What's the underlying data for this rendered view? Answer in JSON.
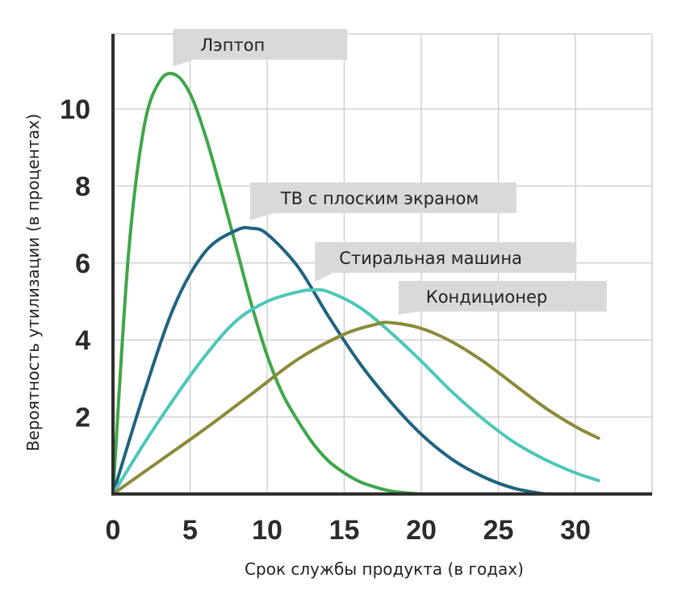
{
  "chart_data": {
    "type": "line",
    "xlabel": "Срок службы продукта (в годах)",
    "ylabel": "Вероятность утилизации (в процентах)",
    "xlim": [
      0,
      35
    ],
    "ylim": [
      0,
      12
    ],
    "x_ticks": [
      0,
      5,
      10,
      15,
      20,
      25,
      30
    ],
    "y_ticks": [
      2,
      4,
      6,
      8,
      10
    ],
    "grid": true,
    "series": [
      {
        "name": "Лэптоп",
        "color": "#3ea64a",
        "x": [
          0,
          1,
          2,
          3,
          4,
          5,
          6,
          7,
          8,
          9,
          10,
          11,
          12,
          13,
          14,
          15,
          16,
          17,
          18,
          19,
          20
        ],
        "y": [
          0,
          6.2,
          9.5,
          10.7,
          10.9,
          10.4,
          9.3,
          7.9,
          6.4,
          4.9,
          3.6,
          2.6,
          1.9,
          1.3,
          0.85,
          0.55,
          0.32,
          0.18,
          0.08,
          0.03,
          0
        ]
      },
      {
        "name": "ТВ с плоским экраном",
        "color": "#1f6380",
        "x": [
          0,
          2,
          4,
          6,
          8,
          9,
          10,
          12,
          14,
          16,
          18,
          20,
          22,
          24,
          26,
          28
        ],
        "y": [
          0,
          2.6,
          4.9,
          6.3,
          6.85,
          6.9,
          6.75,
          5.9,
          4.6,
          3.4,
          2.4,
          1.55,
          0.9,
          0.45,
          0.15,
          0
        ]
      },
      {
        "name": "Стиральная машина",
        "color": "#4cc7b8",
        "x": [
          0,
          2,
          4,
          6,
          8,
          10,
          12,
          13,
          14,
          16,
          18,
          20,
          22,
          24,
          26,
          28,
          30,
          31.5
        ],
        "y": [
          0,
          1.3,
          2.5,
          3.6,
          4.5,
          5.0,
          5.25,
          5.3,
          5.25,
          4.85,
          4.2,
          3.45,
          2.65,
          1.95,
          1.35,
          0.9,
          0.55,
          0.35
        ]
      },
      {
        "name": "Кондиционер",
        "color": "#8a8a3a",
        "x": [
          0,
          3,
          6,
          9,
          12,
          15,
          17,
          18,
          20,
          22,
          24,
          26,
          28,
          30,
          31.5
        ],
        "y": [
          0,
          0.85,
          1.7,
          2.6,
          3.5,
          4.15,
          4.4,
          4.45,
          4.3,
          3.95,
          3.45,
          2.85,
          2.25,
          1.75,
          1.45
        ]
      }
    ],
    "callouts": [
      {
        "series": 0,
        "text": "Лэптоп"
      },
      {
        "series": 1,
        "text": "ТВ с плоским экраном"
      },
      {
        "series": 2,
        "text": "Стиральная машина"
      },
      {
        "series": 3,
        "text": "Кондиционер"
      }
    ]
  }
}
